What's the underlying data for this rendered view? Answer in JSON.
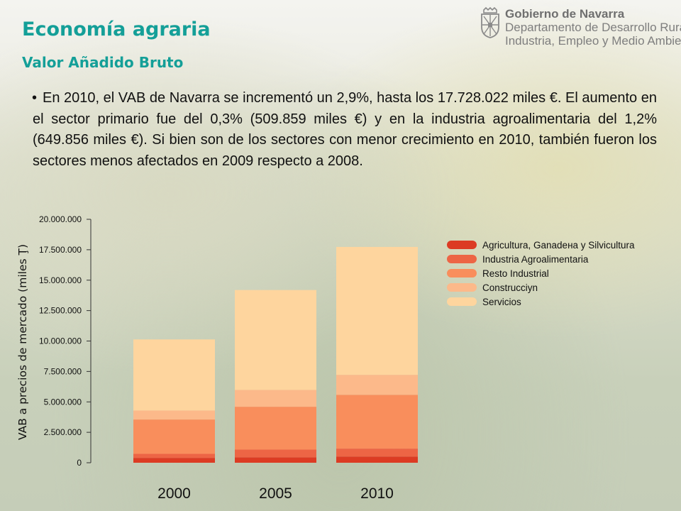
{
  "header": {
    "title": "Economía agraria",
    "subtitle": "Valor Añadido Bruto"
  },
  "logo": {
    "line1": "Gobierno de Navarra",
    "line2": "Departamento de Desarrollo Rural,",
    "line3": "Industria, Empleo y Medio Ambiente",
    "emblem": "navarra-coat-of-arms-icon"
  },
  "text": {
    "bullet": "•",
    "paragraph": "En 2010, el VAB de Navarra se incrementó un 2,9%, hasta los 17.728.022 miles €. El aumento en el sector primario fue del 0,3% (509.859 miles €) y en la industria agroalimentaria del 1,2% (649.856 miles €). Si bien son de los sectores con menor crecimiento en 2010, también fueron los sectores menos afectados en 2009 respecto a 2008."
  },
  "chart_data": {
    "type": "bar",
    "stacked": true,
    "categories": [
      "2000",
      "2005",
      "2010"
    ],
    "ylabel": "VAB a precios de mercado (miles Ţ)",
    "xlabel": "",
    "ylim": [
      0,
      20000000
    ],
    "yticks": [
      0,
      2500000,
      5000000,
      7500000,
      10000000,
      12500000,
      15000000,
      17500000,
      20000000
    ],
    "ytick_labels": [
      "0",
      "2.500.000",
      "5.000.000",
      "7.500.000",
      "10.000.000",
      "12.500.000",
      "15.000.000",
      "17.500.000",
      "20.000.000"
    ],
    "grid": false,
    "legend_position": "top-right",
    "series": [
      {
        "name": "Agricultura, Ganadeнa y Silvicultura",
        "color": "#dc3b23",
        "values": [
          400000,
          450000,
          510000
        ]
      },
      {
        "name": "Industria Agroalimentaria",
        "color": "#ed6545",
        "values": [
          330000,
          630000,
          650000
        ]
      },
      {
        "name": "Resto Industrial",
        "color": "#f98e5c",
        "values": [
          2820000,
          3520000,
          4420000
        ]
      },
      {
        "name": "Construcciуn",
        "color": "#fcb98a",
        "values": [
          740000,
          1380000,
          1640000
        ]
      },
      {
        "name": "Servicios",
        "color": "#fed59e",
        "values": [
          5840000,
          8210000,
          10510000
        ]
      }
    ]
  }
}
